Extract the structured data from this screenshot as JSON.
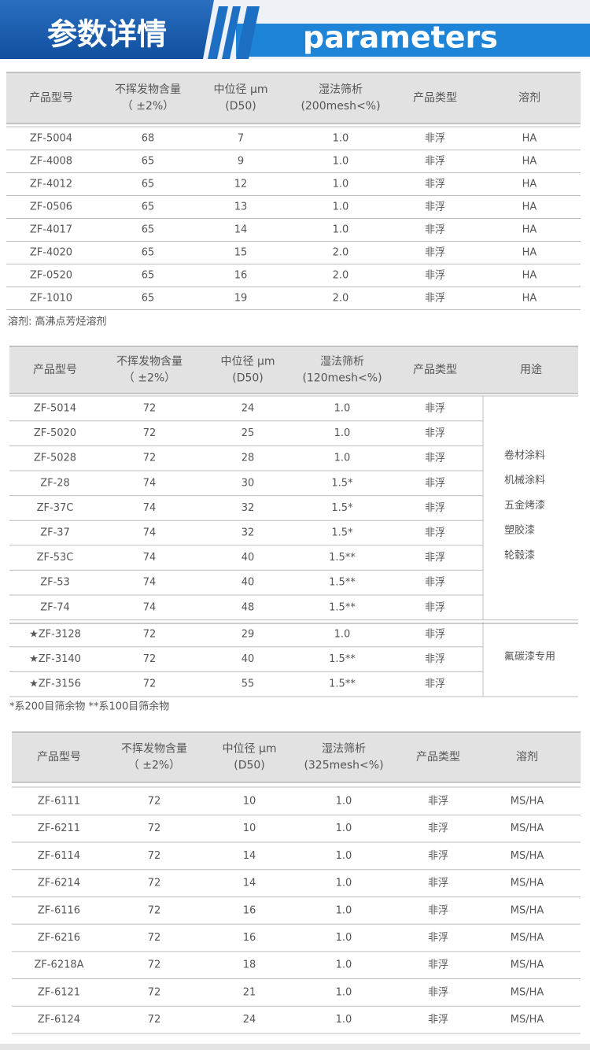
{
  "header": {
    "title": "参数详情",
    "subtitle": "parameters"
  },
  "tables": [
    {
      "headers": [
        [
          "产品型号"
        ],
        [
          "不挥发物含量",
          "（ ±2%）"
        ],
        [
          "中位径 μm",
          "(D50)"
        ],
        [
          "湿法筛析",
          "(200mesh<%)"
        ],
        [
          "产品类型"
        ],
        [
          "溶剂"
        ]
      ],
      "rows": [
        [
          "ZF-5004",
          "68",
          "7",
          "1.0",
          "非浮",
          "HA"
        ],
        [
          "ZF-4008",
          "65",
          "9",
          "1.0",
          "非浮",
          "HA"
        ],
        [
          "ZF-4012",
          "65",
          "12",
          "1.0",
          "非浮",
          "HA"
        ],
        [
          "ZF-0506",
          "65",
          "13",
          "1.0",
          "非浮",
          "HA"
        ],
        [
          "ZF-4017",
          "65",
          "14",
          "1.0",
          "非浮",
          "HA"
        ],
        [
          "ZF-4020",
          "65",
          "15",
          "2.0",
          "非浮",
          "HA"
        ],
        [
          "ZF-0520",
          "65",
          "16",
          "2.0",
          "非浮",
          "HA"
        ],
        [
          "ZF-1010",
          "65",
          "19",
          "2.0",
          "非浮",
          "HA"
        ]
      ],
      "note": "溶剂: 高沸点芳烃溶剂"
    },
    {
      "headers": [
        [
          "产品型号"
        ],
        [
          "不挥发物含量",
          "（ ±2%）"
        ],
        [
          "中位径 μm",
          "(D50)"
        ],
        [
          "湿法筛析",
          "(120mesh<%)"
        ],
        [
          "产品类型"
        ],
        [
          "用途"
        ]
      ],
      "groups": [
        {
          "rows": [
            [
              "ZF-5014",
              "72",
              "24",
              "1.0",
              "非浮"
            ],
            [
              "ZF-5020",
              "72",
              "25",
              "1.0",
              "非浮"
            ],
            [
              "ZF-5028",
              "72",
              "28",
              "1.0",
              "非浮"
            ],
            [
              "ZF-28",
              "74",
              "30",
              "1.5*",
              "非浮"
            ],
            [
              "ZF-37C",
              "74",
              "32",
              "1.5*",
              "非浮"
            ],
            [
              "ZF-37",
              "74",
              "32",
              "1.5*",
              "非浮"
            ],
            [
              "ZF-53C",
              "74",
              "40",
              "1.5**",
              "非浮"
            ],
            [
              "ZF-53",
              "74",
              "40",
              "1.5**",
              "非浮"
            ],
            [
              "ZF-74",
              "74",
              "48",
              "1.5**",
              "非浮"
            ]
          ],
          "usage": [
            "卷材涂料",
            "机械涂料",
            "五金烤漆",
            "塑胶漆",
            "轮毂漆"
          ]
        },
        {
          "rows": [
            [
              "★ZF-3128",
              "72",
              "29",
              "1.0",
              "非浮"
            ],
            [
              "★ZF-3140",
              "72",
              "40",
              "1.5**",
              "非浮"
            ],
            [
              "★ZF-3156",
              "72",
              "55",
              "1.5**",
              "非浮"
            ]
          ],
          "usage": [
            "氟碳漆专用"
          ]
        }
      ],
      "note": "*系200目筛余物   **系100目筛余物"
    },
    {
      "headers": [
        [
          "产品型号"
        ],
        [
          "不挥发物含量",
          "（ ±2%）"
        ],
        [
          "中位径 μm",
          "(D50)"
        ],
        [
          "湿法筛析",
          "(325mesh<%)"
        ],
        [
          "产品类型"
        ],
        [
          "溶剂"
        ]
      ],
      "rows": [
        [
          "ZF-6111",
          "72",
          "10",
          "1.0",
          "非浮",
          "MS/HA"
        ],
        [
          "ZF-6211",
          "72",
          "10",
          "1.0",
          "非浮",
          "MS/HA"
        ],
        [
          "ZF-6114",
          "72",
          "14",
          "1.0",
          "非浮",
          "MS/HA"
        ],
        [
          "ZF-6214",
          "72",
          "14",
          "1.0",
          "非浮",
          "MS/HA"
        ],
        [
          "ZF-6116",
          "72",
          "16",
          "1.0",
          "非浮",
          "MS/HA"
        ],
        [
          "ZF-6216",
          "72",
          "16",
          "1.0",
          "非浮",
          "MS/HA"
        ],
        [
          "ZF-6218A",
          "72",
          "18",
          "1.0",
          "非浮",
          "MS/HA"
        ],
        [
          "ZF-6121",
          "72",
          "21",
          "1.0",
          "非浮",
          "MS/HA"
        ],
        [
          "ZF-6124",
          "72",
          "24",
          "1.0",
          "非浮",
          "MS/HA"
        ]
      ]
    }
  ]
}
